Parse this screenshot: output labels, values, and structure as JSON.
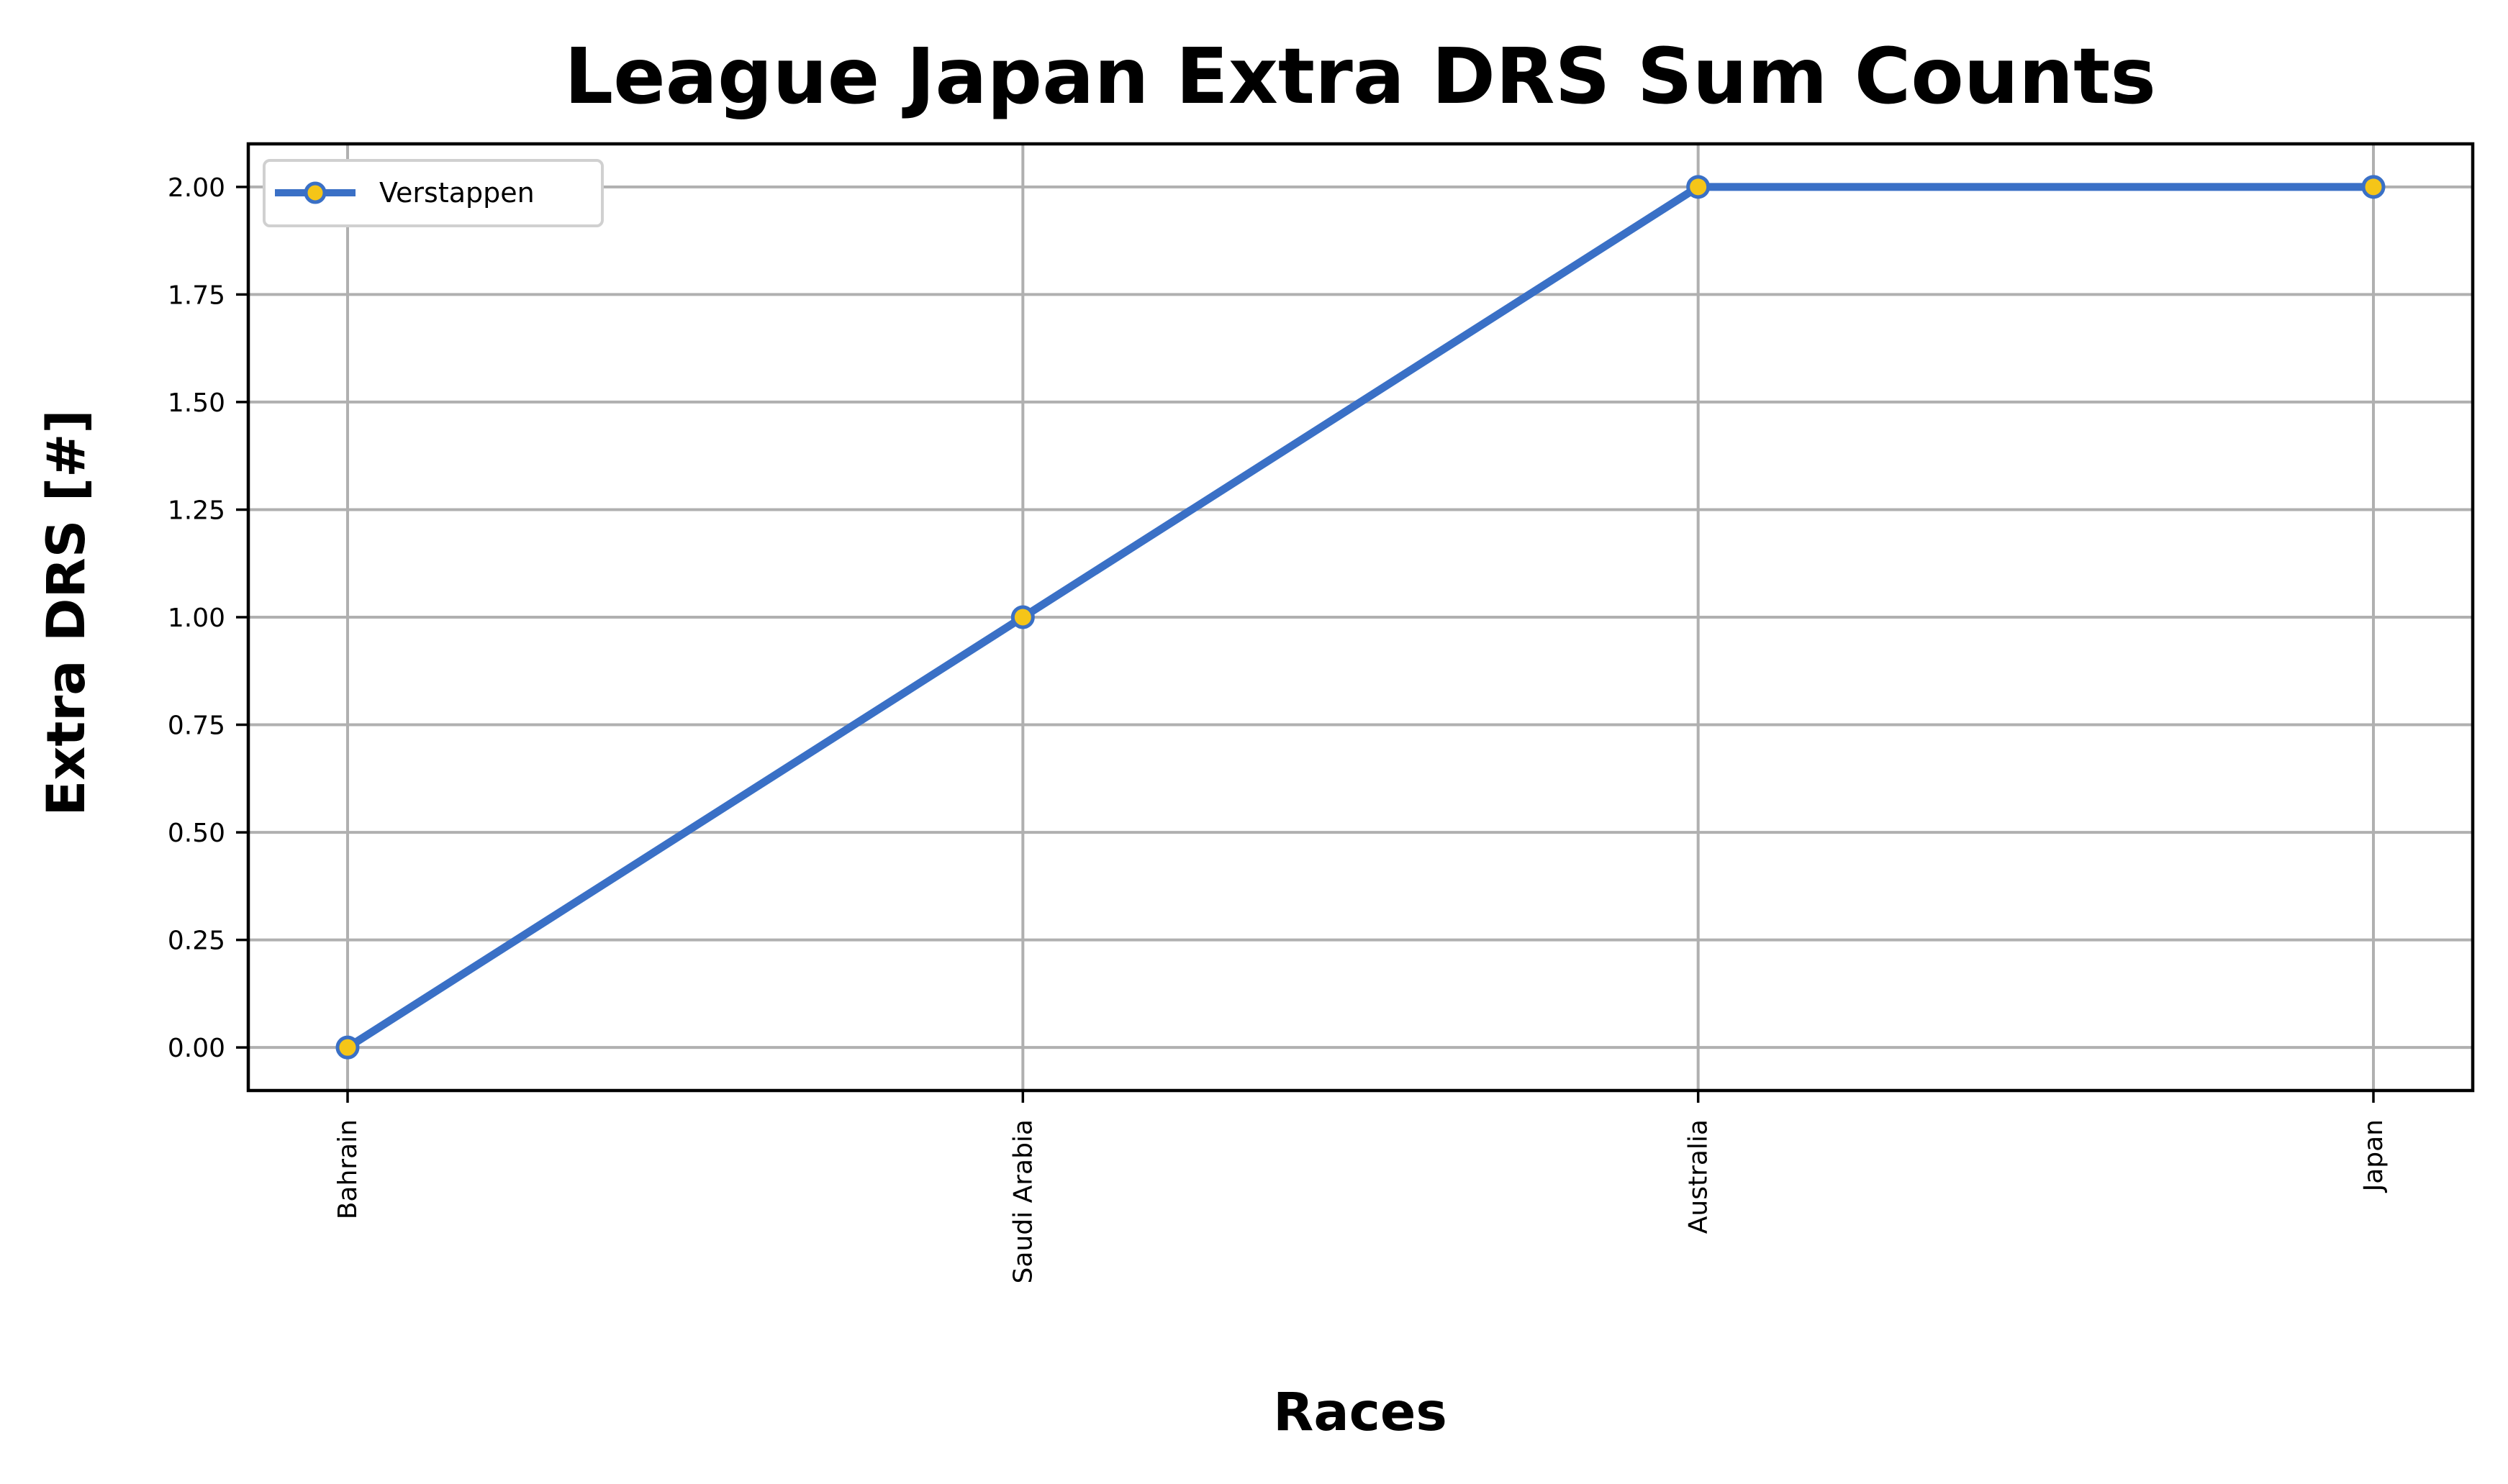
{
  "chart_data": {
    "type": "line",
    "title": "League Japan Extra DRS Sum Counts",
    "xlabel": "Races",
    "ylabel": "Extra DRS [#]",
    "categories": [
      "Bahrain",
      "Saudi Arabia",
      "Australia",
      "Japan"
    ],
    "series": [
      {
        "name": "Verstappen",
        "values": [
          0,
          1,
          2,
          2
        ],
        "color": "#3a70c6",
        "marker_color": "#f5c518"
      }
    ],
    "ylim": [
      -0.1,
      2.1
    ],
    "yticks": [
      0.0,
      0.25,
      0.5,
      0.75,
      1.0,
      1.25,
      1.5,
      1.75,
      2.0
    ],
    "ytick_labels": [
      "0.00",
      "0.25",
      "0.50",
      "0.75",
      "1.00",
      "1.25",
      "1.50",
      "1.75",
      "2.00"
    ],
    "grid": true,
    "legend_position": "top-left",
    "xtick_rotation": "vertical"
  }
}
